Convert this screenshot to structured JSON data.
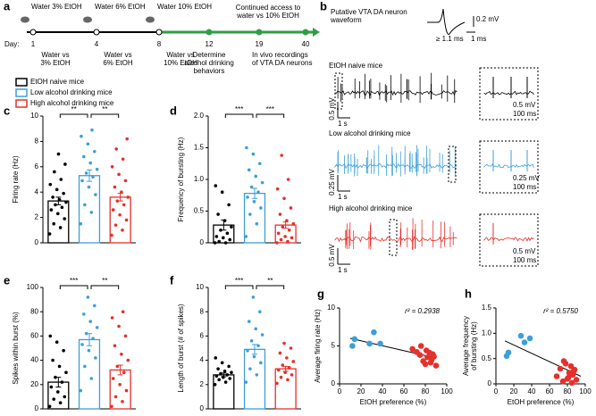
{
  "panel_labels": [
    "a",
    "b",
    "c",
    "d",
    "e",
    "f",
    "g",
    "h"
  ],
  "timeline": {
    "day_label": "Day:",
    "days": [
      "1",
      "4",
      "8",
      "12",
      "19",
      "40"
    ],
    "phases": [
      {
        "top": "Water  3% EtOH",
        "bottom": [
          "Water vs",
          "3% EtOH"
        ]
      },
      {
        "top": "Water  6% EtOH",
        "bottom": [
          "Water vs",
          "6% EtOH"
        ]
      },
      {
        "top": "Water  10% EtOH",
        "bottom": [
          "Water vs",
          "10% EtOH"
        ]
      }
    ],
    "continued": [
      "Continued access to",
      "water vs 10% EtOH"
    ],
    "events": [
      [
        "Determine",
        "alcohol drinking",
        "behaviors"
      ],
      [
        "In vivo recordings",
        "of VTA DA neurons"
      ]
    ]
  },
  "legend": [
    {
      "name": "EtOH naive mice",
      "color": "#000000"
    },
    {
      "name": "Low alcohol drinking mice",
      "color": "#3d9fd9"
    },
    {
      "name": "High alcohol drinking mice",
      "color": "#e5302b"
    }
  ],
  "traces": {
    "waveform_title": [
      "Putative VTA DA neuron",
      "waveform"
    ],
    "waveform_width": "≥ 1.1 ms",
    "waveform_scale_v": "0.2 mV",
    "waveform_scale_t": "1 ms",
    "groups": [
      {
        "title": "EtOH naive mice",
        "color": "#000000",
        "scale_v": "0.5 mV",
        "scale_t": "1 s",
        "inset_v": "0.5 mV",
        "inset_t": "100 ms"
      },
      {
        "title": "Low alcohol drinking mice",
        "color": "#3d9fd9",
        "scale_v": "0.25 mV",
        "scale_t": "1 s",
        "inset_v": "0.25 mV",
        "inset_t": "100 ms"
      },
      {
        "title": "High alcohol drinking mice",
        "color": "#e5302b",
        "scale_v": "0.5 mV",
        "scale_t": "1 s",
        "inset_v": "0.5 mV",
        "inset_t": "100 ms"
      }
    ]
  },
  "chart_data": [
    {
      "type": "bar",
      "ylabel": "Firing rate (Hz)",
      "categories": [
        null,
        null,
        null
      ],
      "colors": [
        "#000000",
        "#3d9fd9",
        "#e5302b"
      ],
      "values": [
        3.3,
        5.3,
        3.6
      ],
      "errors": [
        0.3,
        0.45,
        0.3
      ],
      "points": [
        [
          0.7,
          1.2,
          1.5,
          1.9,
          2.3,
          2.6,
          2.8,
          3.0,
          3.2,
          3.4,
          3.6,
          3.9,
          4.2,
          4.6,
          5.0,
          5.6,
          6.2,
          7.0
        ],
        [
          1.5,
          2.4,
          3.0,
          3.8,
          4.4,
          4.9,
          5.2,
          5.5,
          5.8,
          6.3,
          6.8,
          7.2,
          7.8,
          8.4,
          8.9
        ],
        [
          0.6,
          1.0,
          1.4,
          1.8,
          2.2,
          2.6,
          3.0,
          3.3,
          3.6,
          4.0,
          4.4,
          4.9,
          5.4,
          6.0,
          6.6,
          7.4,
          8.2
        ]
      ],
      "ylim": [
        0,
        10
      ],
      "yticks": [
        0,
        2,
        4,
        6,
        8,
        10
      ],
      "significance": [
        "**",
        "**"
      ]
    },
    {
      "type": "bar",
      "ylabel": "Frequency of bursting (Hz)",
      "categories": [
        null,
        null,
        null
      ],
      "colors": [
        "#000000",
        "#3d9fd9",
        "#e5302b"
      ],
      "values": [
        0.28,
        0.78,
        0.28
      ],
      "errors": [
        0.08,
        0.08,
        0.05
      ],
      "points": [
        [
          0,
          0,
          0.02,
          0.05,
          0.08,
          0.1,
          0.15,
          0.2,
          0.25,
          0.35,
          0.45,
          0.6,
          0.8,
          0.9
        ],
        [
          0.1,
          0.3,
          0.45,
          0.55,
          0.65,
          0.72,
          0.8,
          0.88,
          0.95,
          1.05,
          1.15,
          1.25,
          1.4,
          1.5
        ],
        [
          0,
          0.02,
          0.05,
          0.08,
          0.1,
          0.15,
          0.2,
          0.25,
          0.3,
          0.35,
          0.45,
          0.55,
          0.7,
          0.85,
          1.0,
          1.38
        ]
      ],
      "ylim": [
        0,
        2
      ],
      "yticks": [
        0,
        0.5,
        {
          "value": 1,
          "label": "1.0"
        },
        1.5,
        {
          "value": 2,
          "label": "2.0"
        }
      ],
      "significance": [
        "***",
        "***"
      ]
    },
    {
      "type": "bar",
      "ylabel": "Spikes within burst (%)",
      "categories": [
        null,
        null,
        null
      ],
      "colors": [
        "#000000",
        "#3d9fd9",
        "#e5302b"
      ],
      "values": [
        22,
        57,
        32
      ],
      "errors": [
        4,
        5,
        4
      ],
      "points": [
        [
          2,
          5,
          8,
          10,
          14,
          18,
          22,
          26,
          30,
          35,
          40,
          48,
          55,
          60
        ],
        [
          15,
          25,
          35,
          42,
          48,
          53,
          58,
          62,
          67,
          72,
          78,
          85,
          92
        ],
        [
          2,
          6,
          10,
          15,
          20,
          25,
          30,
          35,
          40,
          45,
          52,
          60,
          68,
          75,
          80
        ]
      ],
      "ylim": [
        0,
        100
      ],
      "yticks": [
        0,
        20,
        40,
        60,
        80,
        100
      ],
      "significance": [
        "***",
        "**"
      ]
    },
    {
      "type": "bar",
      "ylabel": "Length of burst (# of spikes)",
      "categories": [
        null,
        null,
        null
      ],
      "colors": [
        "#000000",
        "#3d9fd9",
        "#e5302b"
      ],
      "values": [
        2.8,
        4.9,
        3.3
      ],
      "errors": [
        0.15,
        0.4,
        0.2
      ],
      "points": [
        [
          2.0,
          2.2,
          2.4,
          2.5,
          2.6,
          2.7,
          2.8,
          2.9,
          3.0,
          3.1,
          3.3,
          3.5,
          3.8,
          4.2
        ],
        [
          2.2,
          2.8,
          3.3,
          3.8,
          4.3,
          4.8,
          5.2,
          5.6,
          6.1,
          6.6,
          7.2,
          8.0,
          9.2
        ],
        [
          2.1,
          2.4,
          2.6,
          2.8,
          3.0,
          3.2,
          3.4,
          3.6,
          3.9,
          4.2,
          4.6,
          5.0,
          5.4
        ]
      ],
      "ylim": [
        0,
        10
      ],
      "yticks": [
        0,
        2,
        4,
        6,
        8,
        10
      ],
      "significance": [
        "***",
        "**"
      ]
    },
    {
      "type": "scatter",
      "xlabel": "EtOH preference (%)",
      "ylabel": "Average firing rate (Hz)",
      "annotation": "r² = 0.2938",
      "series": [
        {
          "color": "#3d9fd9",
          "x": [
            12,
            14,
            28,
            32,
            38
          ],
          "y": [
            5.0,
            5.9,
            5.3,
            6.8,
            5.3
          ]
        },
        {
          "color": "#e5302b",
          "x": [
            68,
            72,
            75,
            78,
            80,
            82,
            84,
            85,
            86,
            88,
            90,
            76,
            81,
            87
          ],
          "y": [
            4.6,
            4.2,
            3.8,
            3.0,
            2.6,
            3.5,
            4.1,
            2.8,
            3.2,
            3.6,
            2.4,
            5.0,
            4.4,
            3.9
          ]
        }
      ],
      "fit": {
        "x": [
          10,
          90
        ],
        "y": [
          6.0,
          3.4
        ]
      },
      "xlim": [
        0,
        100
      ],
      "xticks": [
        0,
        20,
        40,
        60,
        80,
        100
      ],
      "ylim": [
        0,
        10
      ],
      "yticks": [
        0,
        5,
        10
      ]
    },
    {
      "type": "scatter",
      "xlabel": "EtOH preference (%)",
      "ylabel": [
        "Average frequency",
        "of bursting (Hz)"
      ],
      "annotation": "r² = 0.5750",
      "series": [
        {
          "color": "#3d9fd9",
          "x": [
            12,
            14,
            28,
            32,
            38
          ],
          "y": [
            0.55,
            0.62,
            0.95,
            0.82,
            0.9
          ]
        },
        {
          "color": "#e5302b",
          "x": [
            68,
            72,
            75,
            78,
            80,
            82,
            84,
            85,
            86,
            88,
            90,
            76,
            81,
            87
          ],
          "y": [
            0.15,
            0.3,
            0.05,
            0.4,
            0.1,
            0.22,
            0.35,
            0.02,
            0.18,
            0.28,
            0.08,
            0.45,
            0.12,
            0.25
          ]
        }
      ],
      "fit": {
        "x": [
          10,
          95
        ],
        "y": [
          0.85,
          0.15
        ]
      },
      "xlim": [
        0,
        100
      ],
      "xticks": [
        0,
        20,
        40,
        60,
        80,
        100
      ],
      "ylim": [
        0,
        1.5
      ],
      "yticks": [
        0,
        0.5,
        {
          "value": 1,
          "label": "1.0"
        },
        1.5
      ]
    }
  ]
}
